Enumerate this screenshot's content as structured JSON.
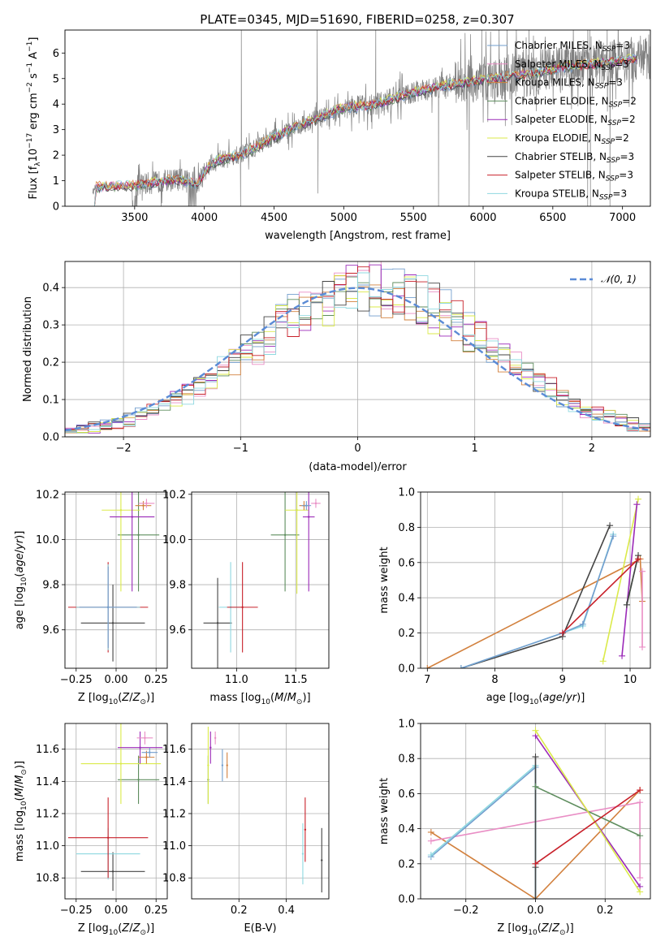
{
  "figure": {
    "title": "PLATE=0345, MJD=51690, FIBERID=0258, z=0.307"
  },
  "models": [
    {
      "key": "chab_miles",
      "label": "Chabrier MILES, N",
      "sub": "SSP",
      "suffix": "=3",
      "color": "#729ece"
    },
    {
      "key": "salp_miles",
      "label": "Salpeter MILES, N",
      "sub": "SSP",
      "suffix": "=3",
      "color": "#e98ec5"
    },
    {
      "key": "krou_miles",
      "label": "Kroupa MILES, N",
      "sub": "SSP",
      "suffix": "=3",
      "color": "#d2803d"
    },
    {
      "key": "chab_elodie",
      "label": "Chabrier ELODIE, N",
      "sub": "SSP",
      "suffix": "=2",
      "color": "#5e8d5e"
    },
    {
      "key": "salp_elodie",
      "label": "Salpeter ELODIE, N",
      "sub": "SSP",
      "suffix": "=2",
      "color": "#9b2ab8"
    },
    {
      "key": "krou_elodie",
      "label": "Kroupa ELODIE, N",
      "sub": "SSP",
      "suffix": "=2",
      "color": "#dbea4a"
    },
    {
      "key": "chab_stelib",
      "label": "Chabrier STELIB, N",
      "sub": "SSP",
      "suffix": "=3",
      "color": "#444444"
    },
    {
      "key": "salp_stelib",
      "label": "Salpeter STELIB, N",
      "sub": "SSP",
      "suffix": "=3",
      "color": "#c8202a"
    },
    {
      "key": "krou_stelib",
      "label": "Kroupa STELIB, N",
      "sub": "SSP",
      "suffix": "=3",
      "color": "#8ed8e0"
    }
  ],
  "chart_data": [
    {
      "id": "spectrum",
      "type": "line",
      "xlabel": "wavelength [Angstrom, rest frame]",
      "ylabel": "Flux [f",
      "ylabel_parts": [
        "Flux [f",
        "λ",
        "10",
        "−17",
        " erg cm",
        "−2",
        " s",
        "−1",
        " A",
        "−1",
        "]"
      ],
      "xlim": [
        3000,
        7200
      ],
      "ylim": [
        0,
        6.9
      ],
      "xticks": [
        3500,
        4000,
        4500,
        5000,
        5500,
        6000,
        6500,
        7000
      ],
      "yticks": [
        0,
        1,
        2,
        3,
        4,
        5,
        6
      ],
      "data_color": "#808080",
      "continuum": [
        [
          3200,
          0.55
        ],
        [
          3220,
          0.75
        ],
        [
          3500,
          0.82
        ],
        [
          3800,
          1.05
        ],
        [
          3950,
          0.9
        ],
        [
          4050,
          1.7
        ],
        [
          4300,
          2.1
        ],
        [
          4500,
          2.7
        ],
        [
          4700,
          3.2
        ],
        [
          5000,
          3.85
        ],
        [
          5200,
          3.95
        ],
        [
          5500,
          4.45
        ],
        [
          5700,
          4.7
        ],
        [
          6000,
          4.95
        ],
        [
          6300,
          5.15
        ],
        [
          6600,
          5.45
        ],
        [
          7000,
          5.7
        ],
        [
          7200,
          5.85
        ]
      ]
    },
    {
      "id": "residuals",
      "type": "step",
      "xlabel": "(data-model)/error",
      "ylabel": "Normed distribution",
      "xlim": [
        -2.5,
        2.5
      ],
      "ylim": [
        0,
        0.47
      ],
      "xticks": [
        -2,
        -1,
        0,
        1,
        2
      ],
      "yticks": [
        0.0,
        0.1,
        0.2,
        0.3,
        0.4
      ],
      "legend": "𝒩(0, 1)",
      "gauss_color": "#5b8bd6"
    },
    {
      "id": "age_vs_Z",
      "type": "scatter",
      "xlabel": "Z [log",
      "ylabel": "age  [log",
      "xlim": [
        -0.32,
        0.32
      ],
      "ylim": [
        9.43,
        10.21
      ],
      "xticks": [
        -0.25,
        0.0,
        0.25
      ],
      "xticklabels": [
        "−0.25",
        "0.00",
        "0.25"
      ],
      "yticks": [
        9.6,
        9.8,
        10.0,
        10.2
      ],
      "yticklabels": [
        "9.6",
        "9.8",
        "10.0",
        "10.2"
      ],
      "points": [
        {
          "m": "chab_stelib",
          "x": -0.02,
          "y": 9.63,
          "xerr": 0.2,
          "yerr": 0.17
        },
        {
          "m": "salp_stelib",
          "x": -0.05,
          "y": 9.7,
          "xerr": 0.25,
          "yerr": 0.2
        },
        {
          "m": "krou_stelib",
          "x": -0.05,
          "y": 9.7,
          "xerr": 0.2,
          "yerr": 0.19
        },
        {
          "m": "chab_miles",
          "x": -0.05,
          "y": 9.7,
          "xerr": 0.18,
          "yerr": 0.18
        },
        {
          "m": "chab_elodie",
          "x": 0.14,
          "y": 10.02,
          "xerr": 0.13,
          "yerr": 0.25
        },
        {
          "m": "krou_elodie",
          "x": 0.03,
          "y": 10.13,
          "xerr": 0.12,
          "yerr": 0.36
        },
        {
          "m": "salp_elodie",
          "x": 0.1,
          "y": 10.1,
          "xerr": 0.14,
          "yerr": 0.33
        },
        {
          "m": "krou_miles",
          "x": 0.17,
          "y": 10.15,
          "xerr": 0.05,
          "yerr": 0.02
        },
        {
          "m": "salp_miles",
          "x": 0.19,
          "y": 10.16,
          "xerr": 0.05,
          "yerr": 0.02
        }
      ]
    },
    {
      "id": "age_vs_mass",
      "type": "scatter",
      "xlabel": "mass [log",
      "ylabel": "",
      "xlim": [
        10.62,
        11.78
      ],
      "ylim": [
        9.43,
        10.21
      ],
      "xticks": [
        11.0,
        11.5
      ],
      "xticklabels": [
        "11.0",
        "11.5"
      ],
      "yticks": [
        9.6,
        9.8,
        10.0,
        10.2
      ],
      "yticklabels": [
        "9.6",
        "9.8",
        "10.0",
        "10.2"
      ],
      "points": [
        {
          "m": "chab_stelib",
          "x": 10.84,
          "y": 9.63,
          "xerr": 0.12,
          "yerr": 0.2
        },
        {
          "m": "krou_stelib",
          "x": 10.95,
          "y": 9.7,
          "xerr": 0.1,
          "yerr": 0.2
        },
        {
          "m": "salp_stelib",
          "x": 11.05,
          "y": 9.7,
          "xerr": 0.13,
          "yerr": 0.2
        },
        {
          "m": "chab_elodie",
          "x": 11.41,
          "y": 10.02,
          "xerr": 0.12,
          "yerr": 0.25
        },
        {
          "m": "krou_elodie",
          "x": 11.51,
          "y": 10.13,
          "xerr": 0.1,
          "yerr": 0.37
        },
        {
          "m": "salp_elodie",
          "x": 11.61,
          "y": 10.1,
          "xerr": 0.05,
          "yerr": 0.33
        },
        {
          "m": "krou_miles",
          "x": 11.57,
          "y": 10.15,
          "xerr": 0.04,
          "yerr": 0.02
        },
        {
          "m": "chab_miles",
          "x": 11.59,
          "y": 10.15,
          "xerr": 0.04,
          "yerr": 0.02
        },
        {
          "m": "salp_miles",
          "x": 11.67,
          "y": 10.16,
          "xerr": 0.04,
          "yerr": 0.02
        }
      ]
    },
    {
      "id": "weight_vs_age",
      "type": "line",
      "xlabel": "age  [log",
      "ylabel": "mass weight",
      "xlim": [
        6.9,
        10.3
      ],
      "ylim": [
        0,
        1
      ],
      "xticks": [
        7,
        8,
        9,
        10
      ],
      "yticks": [
        0.0,
        0.2,
        0.4,
        0.6,
        0.8,
        1.0
      ],
      "series": [
        {
          "m": "krou_miles",
          "x": [
            7.0,
            10.15,
            10.18
          ],
          "y": [
            0.0,
            0.62,
            0.38
          ]
        },
        {
          "m": "salp_miles",
          "x": [
            10.18,
            10.18
          ],
          "y": [
            0.55,
            0.12
          ]
        },
        {
          "m": "chab_stelib",
          "x": [
            7.5,
            9.0,
            9.7
          ],
          "y": [
            0.0,
            0.18,
            0.81
          ]
        },
        {
          "m": "krou_stelib",
          "x": [
            7.5,
            9.0,
            9.3,
            9.75
          ],
          "y": [
            0.0,
            0.2,
            0.24,
            0.76
          ]
        },
        {
          "m": "chab_miles",
          "x": [
            7.5,
            9.0,
            9.3,
            9.75
          ],
          "y": [
            0.0,
            0.2,
            0.25,
            0.75
          ]
        },
        {
          "m": "krou_elodie",
          "x": [
            9.6,
            10.12
          ],
          "y": [
            0.04,
            0.96
          ]
        },
        {
          "m": "salp_elodie",
          "x": [
            9.88,
            10.1
          ],
          "y": [
            0.07,
            0.93
          ]
        },
        {
          "m": "chab_elodie",
          "x": [
            9.95,
            10.12
          ],
          "y": [
            0.36,
            0.64
          ]
        },
        {
          "m": "chab_stelib",
          "x": [
            9.95,
            10.12
          ],
          "y": [
            0.36,
            0.64
          ]
        },
        {
          "m": "salp_stelib",
          "x": [
            9.0,
            10.12
          ],
          "y": [
            0.2,
            0.62
          ]
        }
      ]
    },
    {
      "id": "mass_vs_Z",
      "type": "scatter",
      "xlabel": "Z [log",
      "ylabel": "mass [log",
      "xlim": [
        -0.32,
        0.32
      ],
      "ylim": [
        10.67,
        11.76
      ],
      "xticks": [
        -0.25,
        0.0,
        0.25
      ],
      "xticklabels": [
        "−0.25",
        "0.00",
        "0.25"
      ],
      "yticks": [
        10.8,
        11.0,
        11.2,
        11.4,
        11.6
      ],
      "yticklabels": [
        "10.8",
        "11.0",
        "11.2",
        "11.4",
        "11.6"
      ],
      "points": [
        {
          "m": "chab_stelib",
          "x": -0.02,
          "y": 10.84,
          "xerr": 0.2,
          "yerr": 0.12
        },
        {
          "m": "krou_stelib",
          "x": -0.05,
          "y": 10.95,
          "xerr": 0.2,
          "yerr": 0.16
        },
        {
          "m": "salp_stelib",
          "x": -0.05,
          "y": 11.05,
          "xerr": 0.25,
          "yerr": 0.25
        },
        {
          "m": "chab_elodie",
          "x": 0.14,
          "y": 11.41,
          "xerr": 0.13,
          "yerr": 0.15
        },
        {
          "m": "krou_elodie",
          "x": 0.03,
          "y": 11.51,
          "xerr": 0.25,
          "yerr": 0.25
        },
        {
          "m": "salp_elodie",
          "x": 0.15,
          "y": 11.61,
          "xerr": 0.14,
          "yerr": 0.1
        },
        {
          "m": "krou_miles",
          "x": 0.19,
          "y": 11.55,
          "xerr": 0.05,
          "yerr": 0.04
        },
        {
          "m": "chab_miles",
          "x": 0.21,
          "y": 11.58,
          "xerr": 0.05,
          "yerr": 0.03
        },
        {
          "m": "salp_miles",
          "x": 0.18,
          "y": 11.67,
          "xerr": 0.05,
          "yerr": 0.04
        }
      ]
    },
    {
      "id": "mass_vs_ebv",
      "type": "scatter",
      "xlabel": "E(B-V)",
      "ylabel": "",
      "xlim": [
        0.0,
        0.58
      ],
      "ylim": [
        10.67,
        11.76
      ],
      "xticks": [
        0.2,
        0.4
      ],
      "xticklabels": [
        "0.2",
        "0.4"
      ],
      "yticks": [
        10.8,
        11.0,
        11.2,
        11.4,
        11.6
      ],
      "yticklabels": [
        "10.8",
        "11.0",
        "11.2",
        "11.4",
        "11.6"
      ],
      "points": [
        {
          "m": "chab_elodie",
          "x": 0.07,
          "y": 11.41,
          "xerr": 0.0,
          "yerr": 0.15
        },
        {
          "m": "krou_elodie",
          "x": 0.07,
          "y": 11.5,
          "xerr": 0.0,
          "yerr": 0.24
        },
        {
          "m": "salp_elodie",
          "x": 0.08,
          "y": 11.61,
          "xerr": 0.0,
          "yerr": 0.1
        },
        {
          "m": "salp_miles",
          "x": 0.1,
          "y": 11.67,
          "xerr": 0.0,
          "yerr": 0.04
        },
        {
          "m": "chab_miles",
          "x": 0.13,
          "y": 11.5,
          "xerr": 0.0,
          "yerr": 0.1
        },
        {
          "m": "krou_miles",
          "x": 0.15,
          "y": 11.5,
          "xerr": 0.0,
          "yerr": 0.08
        },
        {
          "m": "krou_stelib",
          "x": 0.47,
          "y": 10.95,
          "xerr": 0.0,
          "yerr": 0.19
        },
        {
          "m": "salp_stelib",
          "x": 0.48,
          "y": 11.1,
          "xerr": 0.0,
          "yerr": 0.2
        },
        {
          "m": "chab_stelib",
          "x": 0.55,
          "y": 10.91,
          "xerr": 0.0,
          "yerr": 0.2
        }
      ]
    },
    {
      "id": "weight_vs_Z",
      "type": "line",
      "xlabel": "Z [log",
      "ylabel": "mass weight",
      "xlim": [
        -0.33,
        0.33
      ],
      "ylim": [
        0,
        1
      ],
      "xticks": [
        -0.2,
        0.0,
        0.2
      ],
      "xticklabels": [
        "−0.2",
        "0.0",
        "0.2"
      ],
      "yticks": [
        0.0,
        0.2,
        0.4,
        0.6,
        0.8,
        1.0
      ],
      "yticklabels": [
        "0.0",
        "0.2",
        "0.4",
        "0.6",
        "0.8",
        "1.0"
      ],
      "series": [
        {
          "m": "krou_miles",
          "x": [
            -0.3,
            0.0,
            0.3
          ],
          "y": [
            0.38,
            0.0,
            0.62
          ]
        },
        {
          "m": "salp_miles",
          "x": [
            -0.3,
            0.3,
            0.3
          ],
          "y": [
            0.33,
            0.55,
            0.12
          ]
        },
        {
          "m": "chab_miles",
          "x": [
            -0.3,
            0.0,
            0.0
          ],
          "y": [
            0.24,
            0.75,
            0.0
          ]
        },
        {
          "m": "krou_stelib",
          "x": [
            -0.3,
            0.0,
            0.0
          ],
          "y": [
            0.25,
            0.76,
            0.0
          ]
        },
        {
          "m": "chab_stelib",
          "x": [
            0.0,
            0.0,
            0.0
          ],
          "y": [
            0.0,
            0.81,
            0.18
          ]
        },
        {
          "m": "chab_elodie",
          "x": [
            0.0,
            0.3
          ],
          "y": [
            0.64,
            0.36
          ]
        },
        {
          "m": "salp_elodie",
          "x": [
            0.0,
            0.3
          ],
          "y": [
            0.93,
            0.07
          ]
        },
        {
          "m": "krou_elodie",
          "x": [
            0.0,
            0.3
          ],
          "y": [
            0.96,
            0.04
          ]
        },
        {
          "m": "salp_stelib",
          "x": [
            0.0,
            0.3
          ],
          "y": [
            0.2,
            0.62
          ]
        }
      ]
    }
  ]
}
